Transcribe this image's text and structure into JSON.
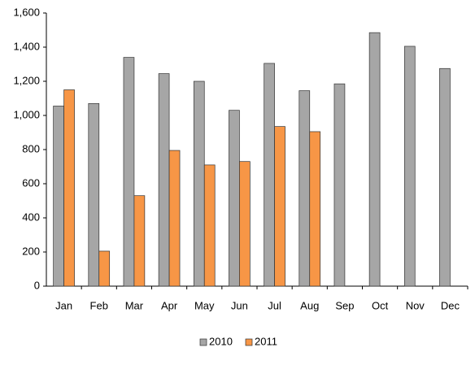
{
  "chart_data": {
    "type": "bar",
    "categories": [
      "Jan",
      "Feb",
      "Mar",
      "Apr",
      "May",
      "Jun",
      "Jul",
      "Aug",
      "Sep",
      "Oct",
      "Nov",
      "Dec"
    ],
    "series": [
      {
        "name": "2010",
        "color": "#a6a6a6",
        "values": [
          1055,
          1070,
          1340,
          1245,
          1200,
          1030,
          1305,
          1145,
          1185,
          1485,
          1405,
          1275
        ]
      },
      {
        "name": "2011",
        "color": "#f79646",
        "values": [
          1150,
          205,
          530,
          795,
          710,
          730,
          935,
          905,
          null,
          null,
          null,
          null
        ]
      }
    ],
    "ylim": [
      0,
      1600
    ],
    "yticks": [
      0,
      200,
      400,
      600,
      800,
      {
        "value": 1000,
        "label": "1,000"
      },
      {
        "value": 1200,
        "label": "1,200"
      },
      {
        "value": 1400,
        "label": "1,400"
      },
      {
        "value": 1600,
        "label": "1,600"
      }
    ],
    "grid": false,
    "legend": "bottom"
  }
}
